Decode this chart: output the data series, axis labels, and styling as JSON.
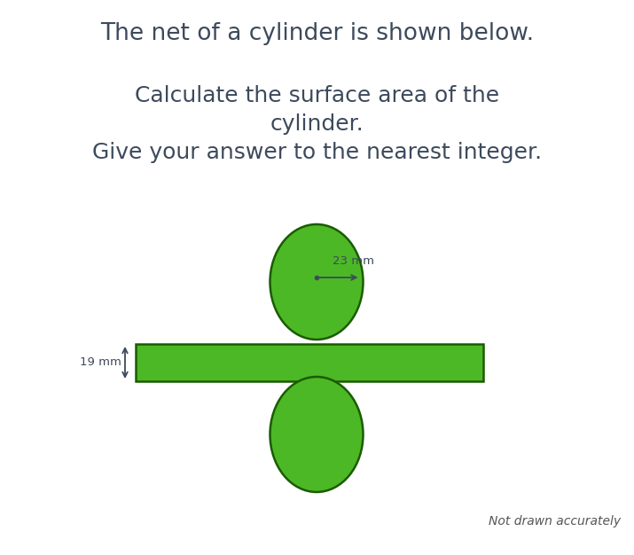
{
  "title1": "The net of a cylinder is shown below.",
  "title2": "Calculate the surface area of the\ncylinder.\nGive your answer to the nearest integer.",
  "background_color": "#ffffff",
  "green_fill": "#4cb825",
  "green_edge": "#1a5c00",
  "text_color": "#3d4a5c",
  "radius_label": "23 mm",
  "height_label": "19 mm",
  "note_text": "Not drawn accurately",
  "title1_fontsize": 19,
  "title2_fontsize": 18,
  "note_fontsize": 10,
  "fig_width": 7.15,
  "fig_height": 6.26,
  "dpi": 100
}
